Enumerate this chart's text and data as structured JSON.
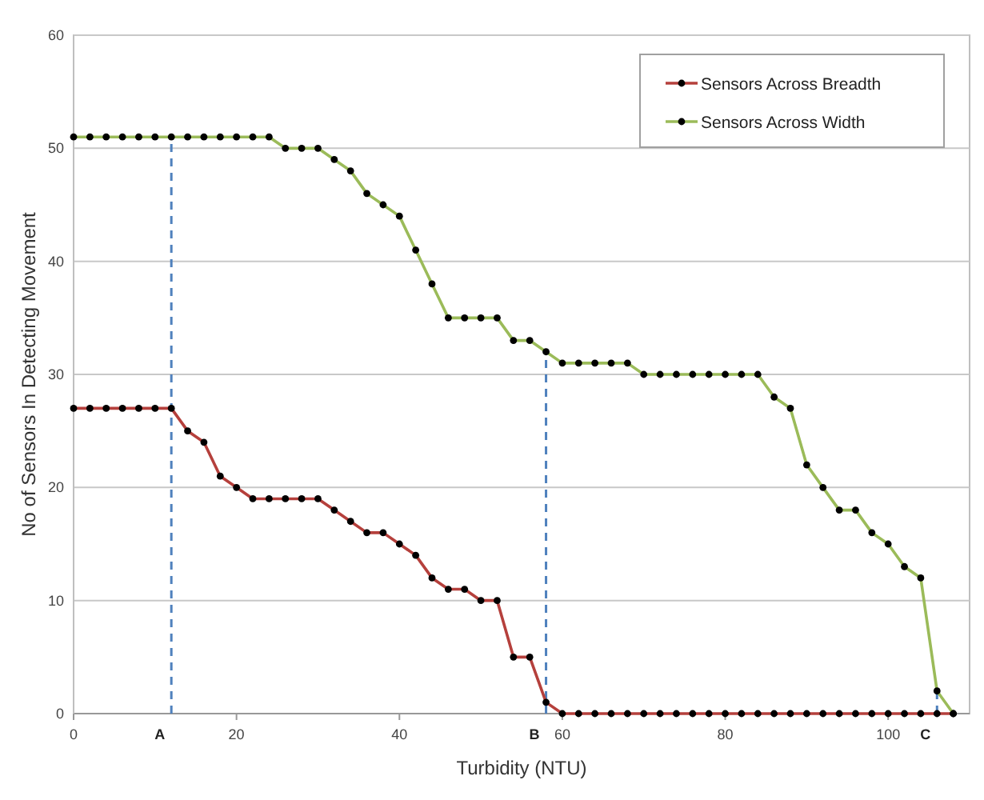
{
  "chart_data": {
    "type": "line",
    "xlabel": "Turbidity (NTU)",
    "ylabel": "No of Sensors In Detecting Movement",
    "xlim": [
      0,
      110
    ],
    "xticks": [
      0,
      20,
      40,
      60,
      80,
      100
    ],
    "ylim": [
      0,
      60
    ],
    "yticks": [
      0,
      10,
      20,
      30,
      40,
      50,
      60
    ],
    "x": [
      0,
      2,
      4,
      6,
      8,
      10,
      12,
      14,
      16,
      18,
      20,
      22,
      24,
      26,
      28,
      30,
      32,
      34,
      36,
      38,
      40,
      42,
      44,
      46,
      48,
      50,
      52,
      54,
      56,
      58,
      60,
      62,
      64,
      66,
      68,
      70,
      72,
      74,
      76,
      78,
      80,
      82,
      84,
      86,
      88,
      90,
      92,
      94,
      96,
      98,
      100,
      102,
      104,
      106,
      108
    ],
    "series": [
      {
        "name": "Sensors Across Breadth",
        "color": "#b5403c",
        "values": [
          27,
          27,
          27,
          27,
          27,
          27,
          27,
          25,
          24,
          21,
          20,
          19,
          19,
          19,
          19,
          19,
          18,
          17,
          16,
          16,
          15,
          14,
          12,
          11,
          11,
          10,
          10,
          5,
          5,
          1,
          0,
          0,
          0,
          0,
          0,
          0,
          0,
          0,
          0,
          0,
          0,
          0,
          0,
          0,
          0,
          0,
          0,
          0,
          0,
          0,
          0,
          0,
          0,
          0,
          0
        ]
      },
      {
        "name": "Sensors Across Width",
        "color": "#9bbb59",
        "values": [
          51,
          51,
          51,
          51,
          51,
          51,
          51,
          51,
          51,
          51,
          51,
          51,
          51,
          50,
          50,
          50,
          49,
          48,
          46,
          45,
          44,
          41,
          38,
          35,
          35,
          35,
          35,
          33,
          33,
          32,
          31,
          31,
          31,
          31,
          31,
          30,
          30,
          30,
          30,
          30,
          30,
          30,
          30,
          28,
          27,
          22,
          20,
          18,
          18,
          16,
          15,
          13,
          12,
          2,
          0
        ]
      }
    ],
    "ref_lines": [
      {
        "axis": "x",
        "value": 12,
        "label": "A",
        "color": "#4f81bd",
        "line_style": "dashed"
      },
      {
        "axis": "x",
        "value": 58,
        "label": "B",
        "color": "#4f81bd",
        "line_style": "dashed"
      },
      {
        "axis": "x",
        "value": 106,
        "label": "C",
        "color": "#4f81bd",
        "line_style": "dashed"
      }
    ],
    "grid": "y",
    "legend": "top right",
    "marker": "circle",
    "line_style": "solid"
  }
}
